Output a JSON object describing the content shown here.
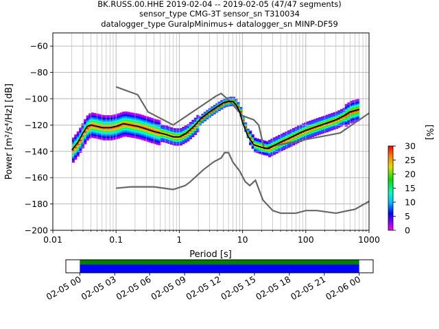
{
  "title_lines": [
    "BK.RUSS.00.HHE   2019-02-04 -- 2019-02-05  (47/47 segments)",
    "sensor_type CMG-3T sensor_sn T310034",
    "datalogger_type GuralpMinimus+ datalogger_sn MINP-DF59"
  ],
  "chart_data": [
    {
      "type": "heatmap",
      "title": "BK.RUSS.00.HHE   2019-02-04 -- 2019-02-05  (47/47 segments)",
      "xlabel": "Period [s]",
      "ylabel": "Power [m²/s⁴/Hz] [dB]",
      "x_scale": "log",
      "xlim": [
        0.01,
        1000
      ],
      "ylim": [
        -200,
        -50
      ],
      "x_ticks": [
        "0.01",
        "0.1",
        "1",
        "10",
        "100",
        "1000"
      ],
      "y_ticks": [
        "−200",
        "−180",
        "−160",
        "−140",
        "−120",
        "−100",
        "−80",
        "−60"
      ],
      "grid": true,
      "colorbar": {
        "label": "[%]",
        "range": [
          0,
          30
        ],
        "ticks": [
          "0",
          "5",
          "10",
          "15",
          "20",
          "25",
          "30"
        ]
      },
      "series": [
        {
          "name": "",
          "role": "mode",
          "color": "#000000",
          "points": [
            [
              0.02,
              -139
            ],
            [
              0.025,
              -133
            ],
            [
              0.03,
              -126
            ],
            [
              0.035,
              -121
            ],
            [
              0.04,
              -120
            ],
            [
              0.05,
              -121
            ],
            [
              0.06,
              -122
            ],
            [
              0.08,
              -122
            ],
            [
              0.1,
              -121
            ],
            [
              0.13,
              -119
            ],
            [
              0.17,
              -120
            ],
            [
              0.22,
              -121
            ],
            [
              0.3,
              -123
            ],
            [
              0.4,
              -125
            ],
            [
              0.6,
              -127
            ],
            [
              0.8,
              -129
            ],
            [
              1.0,
              -129
            ],
            [
              1.3,
              -126
            ],
            [
              1.7,
              -121
            ],
            [
              2.2,
              -115
            ],
            [
              3,
              -110
            ],
            [
              4,
              -106
            ],
            [
              5,
              -103
            ],
            [
              6,
              -102
            ],
            [
              7,
              -102
            ],
            [
              8,
              -105
            ],
            [
              9,
              -110
            ],
            [
              10,
              -118
            ],
            [
              12,
              -128
            ],
            [
              15,
              -135
            ],
            [
              20,
              -137
            ],
            [
              25,
              -138
            ],
            [
              30,
              -136
            ],
            [
              40,
              -133
            ],
            [
              60,
              -129
            ],
            [
              80,
              -126
            ],
            [
              100,
              -124
            ],
            [
              150,
              -121
            ],
            [
              200,
              -119
            ],
            [
              300,
              -116
            ],
            [
              400,
              -113
            ],
            [
              500,
              -110
            ],
            [
              600,
              -109
            ],
            [
              700,
              -108
            ]
          ]
        },
        {
          "name": "",
          "role": "NHNM",
          "color": "#666666",
          "points": [
            [
              0.1,
              -91
            ],
            [
              0.22,
              -97
            ],
            [
              0.32,
              -110
            ],
            [
              0.8,
              -120
            ],
            [
              3.8,
              -98
            ],
            [
              4.6,
              -96
            ],
            [
              6,
              -101
            ],
            [
              10,
              -113
            ],
            [
              15,
              -116
            ],
            [
              18,
              -120
            ],
            [
              22,
              -138
            ],
            [
              30,
              -136
            ],
            [
              100,
              -131
            ],
            [
              350,
              -126
            ],
            [
              1000,
              -111
            ]
          ]
        },
        {
          "name": "",
          "role": "NLNM",
          "color": "#666666",
          "points": [
            [
              0.1,
              -168
            ],
            [
              0.17,
              -167
            ],
            [
              0.4,
              -167
            ],
            [
              0.8,
              -169
            ],
            [
              1.24,
              -166
            ],
            [
              1.5,
              -163
            ],
            [
              2.4,
              -154
            ],
            [
              3.5,
              -148
            ],
            [
              4.6,
              -145
            ],
            [
              5.2,
              -141
            ],
            [
              6,
              -141
            ],
            [
              7,
              -148
            ],
            [
              9,
              -155
            ],
            [
              11,
              -163
            ],
            [
              13,
              -166
            ],
            [
              16,
              -162
            ],
            [
              21,
              -177
            ],
            [
              30,
              -185
            ],
            [
              40,
              -187
            ],
            [
              70,
              -187
            ],
            [
              100,
              -185
            ],
            [
              150,
              -185
            ],
            [
              300,
              -187
            ],
            [
              600,
              -184
            ],
            [
              1000,
              -178
            ]
          ]
        }
      ]
    },
    {
      "type": "timeline",
      "x_ticks": [
        "02-05 00",
        "02-05 03",
        "02-05 06",
        "02-05 09",
        "02-05 12",
        "02-05 15",
        "02-05 18",
        "02-05 21",
        "02-06 00"
      ],
      "x_tick_hours": [
        0,
        3,
        6,
        9,
        12,
        15,
        18,
        21,
        24
      ],
      "xlim_hours": [
        -1.2,
        25.2
      ],
      "bar_hours": [
        0,
        24
      ],
      "colors": [
        "#008000",
        "#0000ff"
      ]
    }
  ]
}
